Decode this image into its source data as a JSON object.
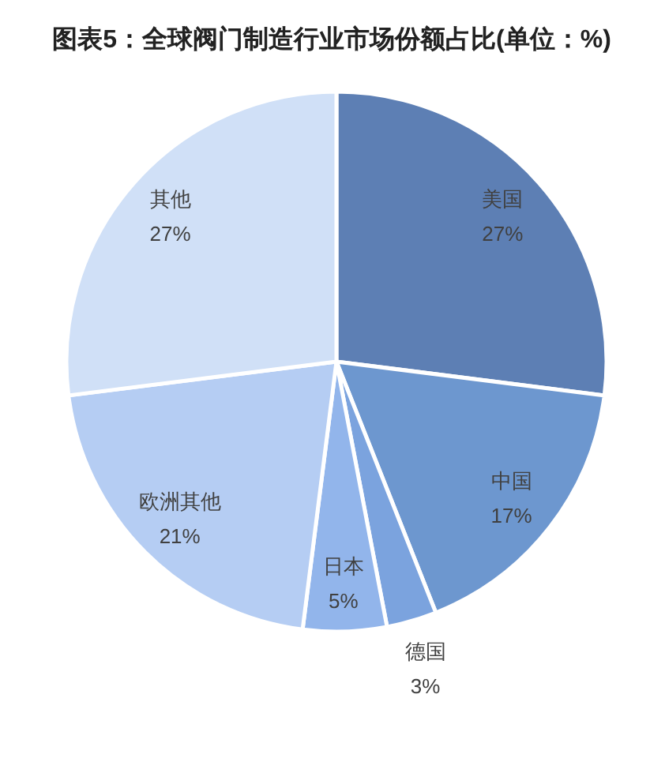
{
  "chart_data": {
    "type": "pie",
    "title": "图表5：全球阀门制造行业市场份额占比(单位：%)",
    "categories": [
      "美国",
      "中国",
      "德国",
      "日本",
      "欧洲其他",
      "其他"
    ],
    "values": [
      27,
      17,
      3,
      5,
      21,
      27
    ],
    "colors": [
      "#5d7fb4",
      "#6d97cf",
      "#7ba3de",
      "#92b5eb",
      "#b5cdf3",
      "#d0e0f7"
    ],
    "value_labels": [
      "27%",
      "17%",
      "3%",
      "5%",
      "21%",
      "27%"
    ]
  }
}
